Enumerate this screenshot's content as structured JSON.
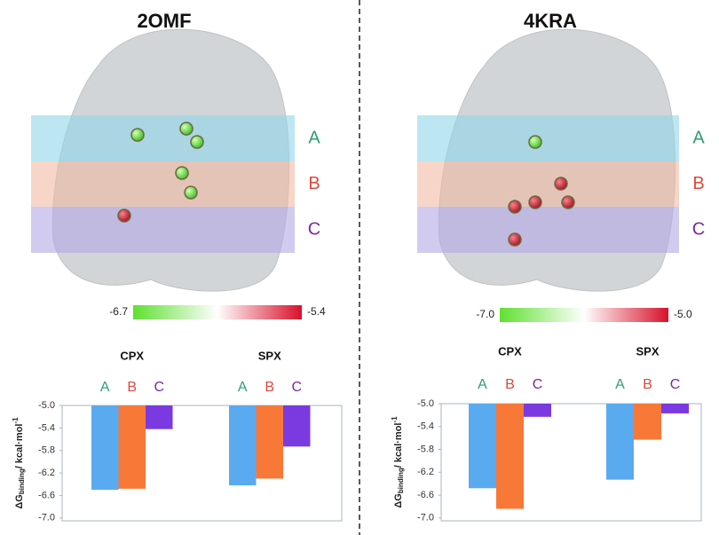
{
  "chart_data": [
    {
      "type": "bar",
      "title": "2OMF",
      "band_labels": [
        "A",
        "B",
        "C"
      ],
      "colorbar": [
        -6.7,
        -5.4
      ],
      "categories": [
        "CPX",
        "SPX"
      ],
      "series": [
        {
          "name": "A",
          "color": "#5aaaf0",
          "label_color": "#2e9e6e",
          "values": [
            -6.5,
            -6.42
          ]
        },
        {
          "name": "B",
          "color": "#f87838",
          "label_color": "#e0483a",
          "values": [
            -6.48,
            -6.3
          ]
        },
        {
          "name": "C",
          "color": "#7a3ae0",
          "label_color": "#7a2a9a",
          "values": [
            -5.42,
            -5.73
          ]
        }
      ],
      "y_label": {
        "main": "ΔG",
        "sub": "binding",
        "unit": "/ kcal·mol",
        "sup": "-1"
      },
      "ylim": [
        -7.05,
        -5.0
      ],
      "yticks": [
        {
          "value": -5.0,
          "label": "-5.0"
        },
        -5.4,
        -5.8,
        -6.2,
        -6.6,
        {
          "value": -7.0,
          "label": "-7.0"
        }
      ]
    },
    {
      "type": "bar",
      "title": "4KRA",
      "band_labels": [
        "A",
        "B",
        "C"
      ],
      "colorbar": [
        {
          "value": -7.0,
          "label": "-7.0"
        },
        {
          "value": -5.0,
          "label": "-5.0"
        }
      ],
      "categories": [
        "CPX",
        "SPX"
      ],
      "series": [
        {
          "name": "A",
          "color": "#5aaaf0",
          "label_color": "#2e9e6e",
          "values": [
            -6.48,
            -6.33
          ]
        },
        {
          "name": "B",
          "color": "#f87838",
          "label_color": "#e0483a",
          "values": [
            -6.84,
            -5.63
          ]
        },
        {
          "name": "C",
          "color": "#7a3ae0",
          "label_color": "#7a2a9a",
          "values": [
            -5.23,
            -5.17
          ]
        }
      ],
      "y_label": {
        "main": "ΔG",
        "sub": "binding",
        "unit": "/ kcal·mol",
        "sup": "-1"
      },
      "ylim": [
        -7.05,
        -5.0
      ],
      "yticks": [
        {
          "value": -5.0,
          "label": "-5.0"
        },
        -5.4,
        -5.8,
        -6.2,
        -6.6,
        {
          "value": -7.0,
          "label": "-7.0"
        }
      ]
    }
  ]
}
